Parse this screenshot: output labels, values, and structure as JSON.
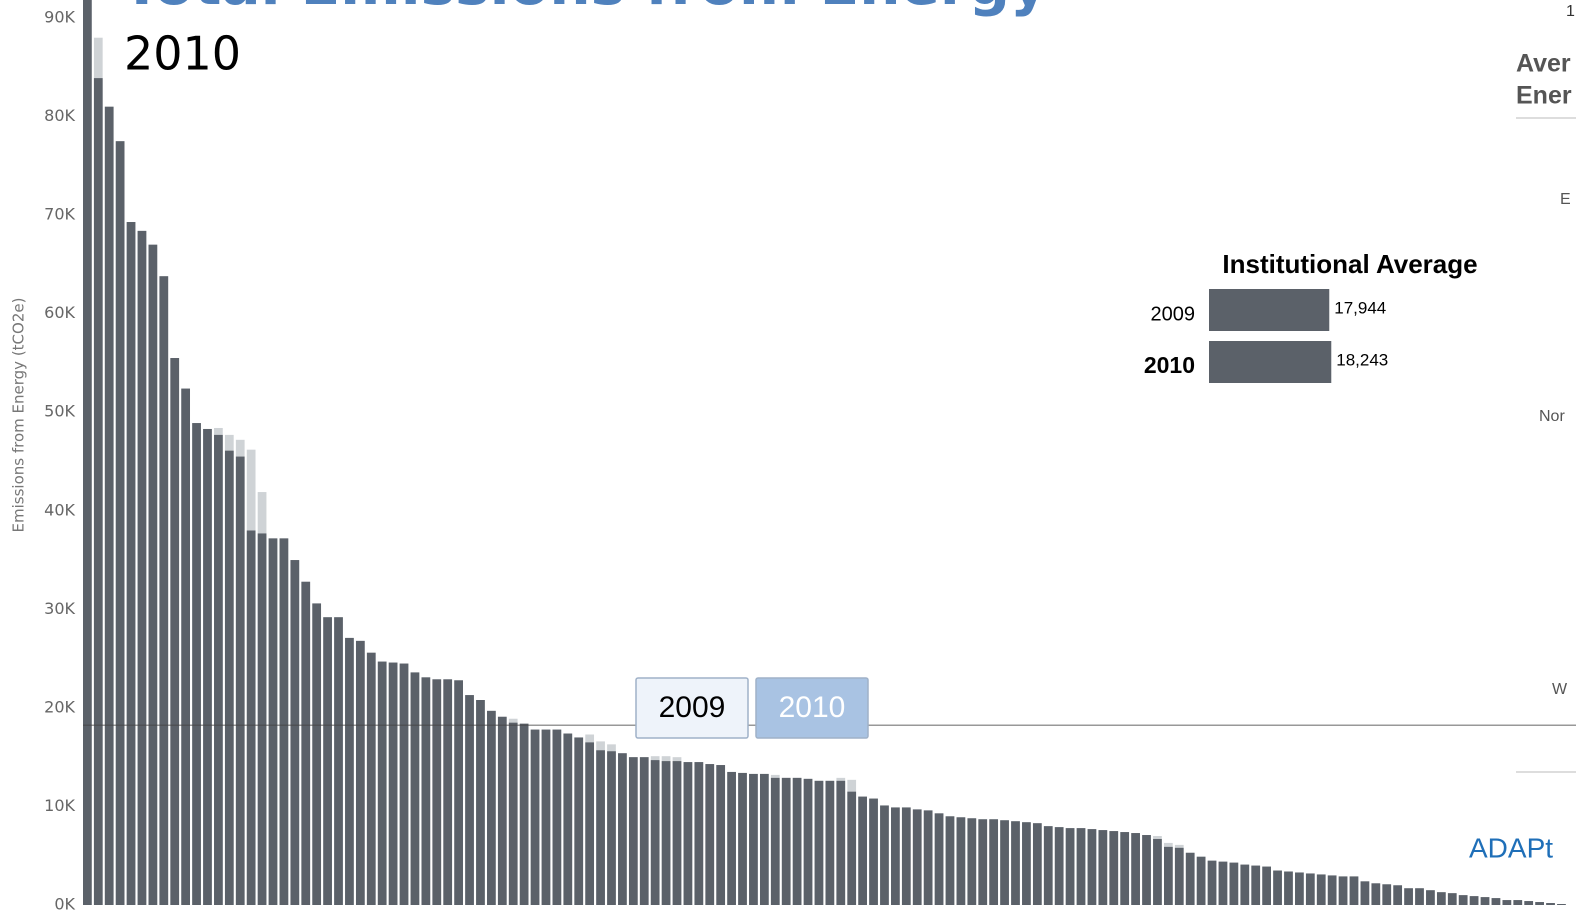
{
  "chart_data": [
    {
      "type": "bar",
      "title": "Total Emissions from Energy",
      "subtitle": "2010",
      "y_label": "Emissions from Energy (tCO2e)",
      "ylim": [
        0,
        90000
      ],
      "yticks": [
        {
          "value": 0,
          "label": "0K"
        },
        {
          "value": 10000,
          "label": "10K"
        },
        {
          "value": 20000,
          "label": "20K"
        },
        {
          "value": 30000,
          "label": "30K"
        },
        {
          "value": 40000,
          "label": "40K"
        },
        {
          "value": 50000,
          "label": "50K"
        },
        {
          "value": 60000,
          "label": "60K"
        },
        {
          "value": 70000,
          "label": "70K"
        },
        {
          "value": 80000,
          "label": "80K"
        },
        {
          "value": 90000,
          "label": "90K"
        }
      ],
      "series": [
        {
          "name": "2009",
          "color": "#cfd3d6",
          "values": [
            93000,
            88000,
            81000,
            77500,
            69300,
            68400,
            67000,
            63800,
            55500,
            52400,
            48900,
            48300,
            48400,
            47700,
            47200,
            46200,
            41900,
            37200,
            37200,
            35000,
            32800,
            30600,
            29200,
            29200,
            27100,
            26800,
            25600,
            24700,
            24600,
            24500,
            23600,
            23100,
            22900,
            22900,
            22800,
            21300,
            20800,
            19700,
            19100,
            18900,
            18400,
            17800,
            17800,
            17800,
            17400,
            17000,
            17300,
            16600,
            16300,
            15400,
            15000,
            15000,
            15100,
            15100,
            15000,
            14500,
            14500,
            14300,
            14200,
            13500,
            13400,
            13300,
            13300,
            13200,
            12900,
            12900,
            12800,
            12600,
            12600,
            12900,
            12700,
            11000,
            10800,
            10100,
            9900,
            9900,
            9700,
            9600,
            9300,
            9000,
            8900,
            8800,
            8700,
            8700,
            8600,
            8500,
            8400,
            8300,
            8000,
            7900,
            7800,
            7800,
            7700,
            7600,
            7500,
            7400,
            7300,
            7100,
            7000,
            6300,
            6100,
            5300,
            4900,
            4500,
            4400,
            4300,
            4100,
            4000,
            3900,
            3500,
            3400,
            3300,
            3200,
            3100,
            3000,
            2900,
            2900,
            2400,
            2200,
            2100,
            2000,
            1700,
            1700,
            1500,
            1300,
            1200,
            1000,
            900,
            800,
            700,
            500,
            500,
            400,
            300,
            200,
            100
          ]
        },
        {
          "name": "2010",
          "color": "#5b6169",
          "values": [
            93000,
            83900,
            81000,
            77500,
            69300,
            68400,
            67000,
            63800,
            55500,
            52400,
            48900,
            48300,
            47700,
            46100,
            45500,
            38000,
            37700,
            37200,
            37200,
            35000,
            32800,
            30600,
            29200,
            29200,
            27100,
            26800,
            25600,
            24700,
            24600,
            24500,
            23600,
            23100,
            22900,
            22900,
            22800,
            21300,
            20800,
            19700,
            19100,
            18500,
            18400,
            17800,
            17800,
            17800,
            17400,
            17000,
            16500,
            15700,
            15600,
            15400,
            15000,
            15000,
            14700,
            14600,
            14600,
            14500,
            14500,
            14300,
            14200,
            13500,
            13400,
            13300,
            13300,
            12900,
            12900,
            12900,
            12800,
            12600,
            12600,
            12600,
            11500,
            11000,
            10800,
            10100,
            9900,
            9900,
            9700,
            9600,
            9300,
            9000,
            8900,
            8800,
            8700,
            8700,
            8600,
            8500,
            8400,
            8300,
            8000,
            7900,
            7800,
            7800,
            7700,
            7600,
            7500,
            7400,
            7300,
            7100,
            6700,
            5900,
            5800,
            5300,
            4900,
            4500,
            4400,
            4300,
            4100,
            4000,
            3900,
            3500,
            3400,
            3300,
            3200,
            3100,
            3000,
            2900,
            2900,
            2400,
            2200,
            2100,
            2000,
            1700,
            1700,
            1500,
            1300,
            1200,
            1000,
            900,
            800,
            700,
            500,
            500,
            400,
            300,
            200,
            100
          ]
        }
      ]
    },
    {
      "type": "hbar",
      "title": "Institutional Average",
      "categories": [
        "2009",
        "2010"
      ],
      "values": [
        17944,
        18243
      ],
      "value_labels": [
        "17,944",
        "18,243"
      ],
      "color": "#5b6169",
      "xlim": [
        0,
        18500
      ]
    }
  ],
  "side_panel": {
    "heading_lines": [
      "Aver",
      "Ener"
    ],
    "labels": [
      "E",
      "Nor",
      "W"
    ],
    "logo": "ADAPt",
    "corner_text": "1"
  }
}
